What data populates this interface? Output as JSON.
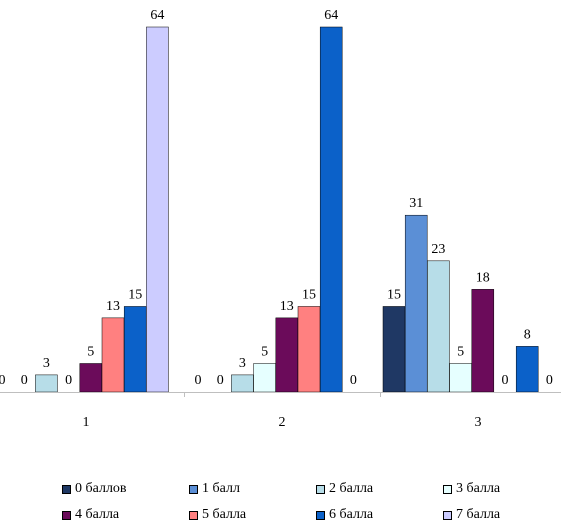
{
  "chart_data": {
    "type": "bar",
    "categories": [
      "1",
      "2",
      "3"
    ],
    "ylim": [
      0,
      64
    ],
    "grid": false,
    "legend_position": "bottom",
    "series": [
      {
        "name": "0 баллов",
        "color": "#1f3864",
        "values": [
          0,
          0,
          15
        ]
      },
      {
        "name": "1 балл",
        "color": "#5b8fd6",
        "values": [
          0,
          0,
          31
        ]
      },
      {
        "name": "2 балла",
        "color": "#b7dde8",
        "values": [
          3,
          3,
          23
        ]
      },
      {
        "name": "3 балла",
        "color": "#e6ffff",
        "values": [
          0,
          5,
          5
        ]
      },
      {
        "name": "4 балла",
        "color": "#6b0b5a",
        "values": [
          5,
          13,
          18
        ]
      },
      {
        "name": "5 балла",
        "color": "#ff8080",
        "values": [
          13,
          15,
          0
        ]
      },
      {
        "name": "6 балла",
        "color": "#0b61c9",
        "values": [
          15,
          64,
          8
        ]
      },
      {
        "name": "7 балла",
        "color": "#ccccff",
        "values": [
          64,
          0,
          0
        ]
      }
    ]
  }
}
